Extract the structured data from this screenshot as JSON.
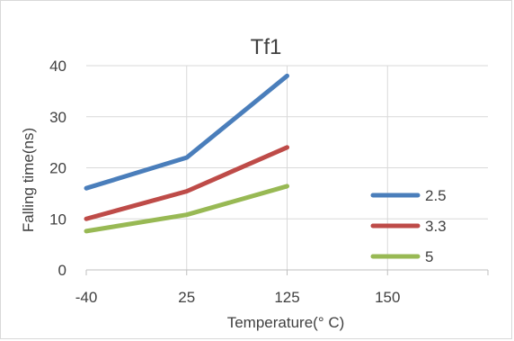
{
  "chart_data": {
    "type": "line",
    "title": "Tf1",
    "xlabel": "Temperature(° C)",
    "ylabel": "Falling time(ns)",
    "categories": [
      "-40",
      "25",
      "125",
      "150"
    ],
    "ylim": [
      0,
      40
    ],
    "yticks": [
      "0",
      "10",
      "20",
      "30",
      "40"
    ],
    "grid": true,
    "legend_position": "right",
    "series": [
      {
        "name": "2.5",
        "values": [
          16,
          22,
          38,
          null
        ],
        "color": "#4a7ebb"
      },
      {
        "name": "3.3",
        "values": [
          10,
          15.4,
          24,
          null
        ],
        "color": "#be4b48"
      },
      {
        "name": "5",
        "values": [
          7.6,
          10.8,
          16.4,
          null
        ],
        "color": "#98b954"
      }
    ]
  }
}
